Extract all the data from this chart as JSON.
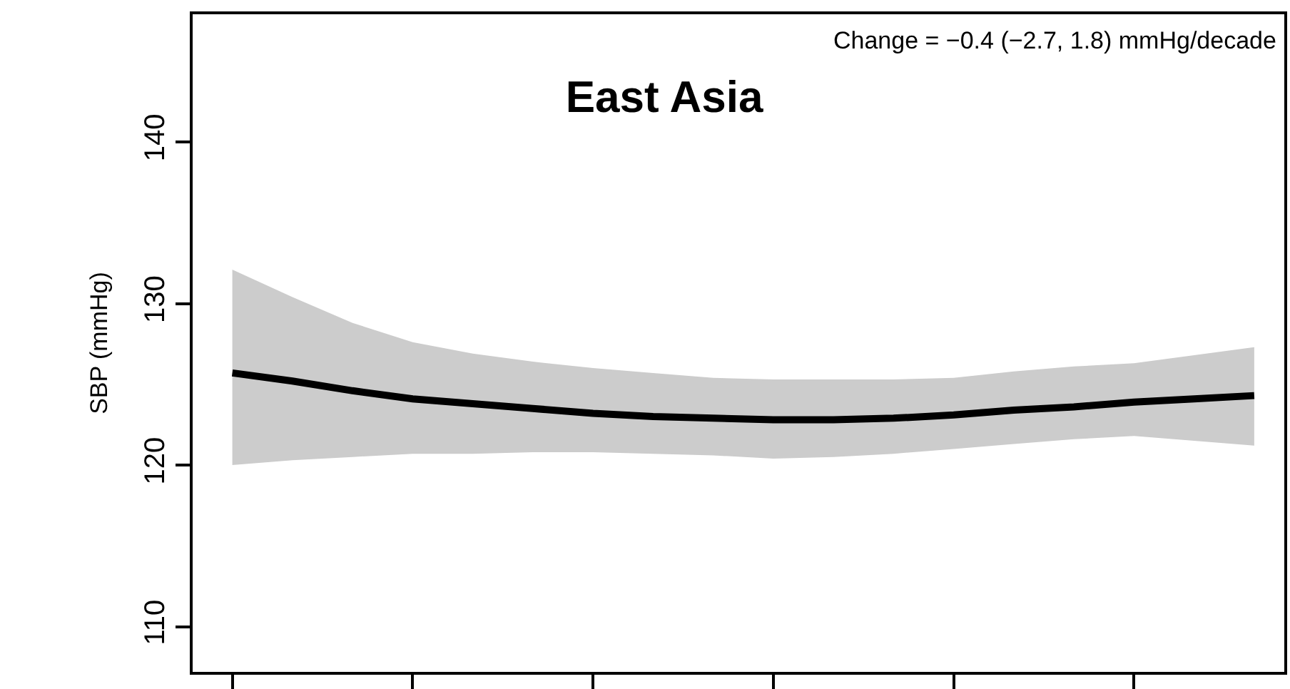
{
  "chart_data": {
    "type": "line",
    "title": "East Asia",
    "ylabel": "SBP (mmHg)",
    "annotations": [
      "Change = −0.4 (−2.7, 1.8) mmHg/decade"
    ],
    "categories": [
      null,
      null,
      null,
      null,
      null,
      null,
      null,
      null,
      null,
      null,
      null,
      null,
      null,
      null,
      null,
      null,
      null,
      null
    ],
    "series": [
      {
        "color": "#000000",
        "values": [
          125.7,
          125.2,
          124.6,
          124.1,
          123.8,
          123.5,
          123.2,
          123.0,
          122.9,
          122.8,
          122.8,
          122.9,
          123.1,
          123.4,
          123.6,
          123.9,
          124.1,
          124.3
        ],
        "upper": [
          132.1,
          130.4,
          128.8,
          127.6,
          126.9,
          126.4,
          126.0,
          125.7,
          125.4,
          125.3,
          125.3,
          125.3,
          125.4,
          125.8,
          126.1,
          126.3,
          126.8,
          127.3
        ],
        "lower": [
          120.0,
          120.3,
          120.5,
          120.7,
          120.7,
          120.8,
          120.8,
          120.7,
          120.6,
          120.4,
          120.5,
          120.7,
          121.0,
          121.3,
          121.6,
          121.8,
          121.5,
          121.2
        ]
      }
    ],
    "ylim": [
      107.2,
      147.9
    ],
    "yticks": [
      110,
      120,
      130,
      140
    ],
    "tick_labels": "y",
    "marker": "none",
    "line_style": "solid"
  }
}
